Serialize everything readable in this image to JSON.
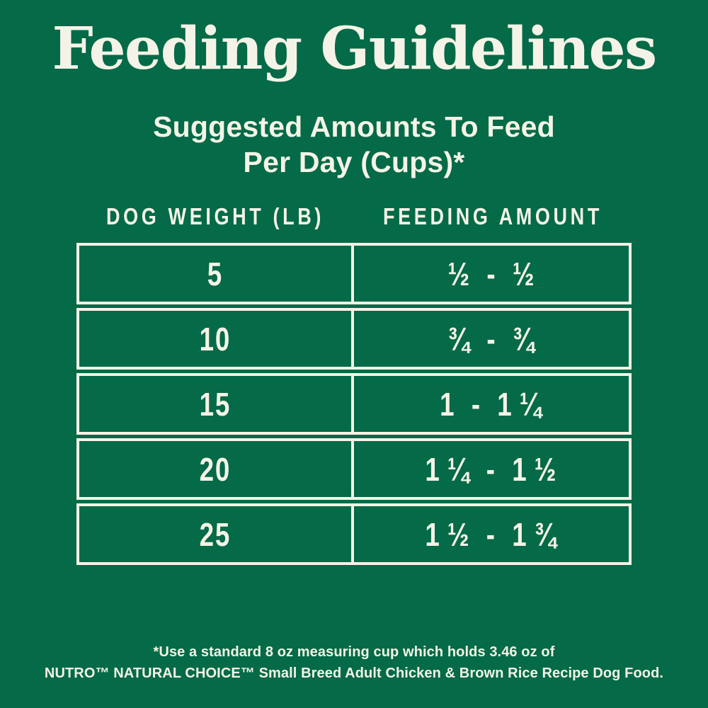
{
  "page": {
    "title": "Feeding Guidelines",
    "subtitle_line1": "Suggested Amounts To Feed",
    "subtitle_line2": "Per Day (Cups)*"
  },
  "table": {
    "columns": [
      {
        "label": "DOG WEIGHT (LB)"
      },
      {
        "label": "FEEDING AMOUNT"
      }
    ],
    "rows": [
      {
        "weight": "5",
        "amount": "½ - ½"
      },
      {
        "weight": "10",
        "amount": "¾ - ¾"
      },
      {
        "weight": "15",
        "amount": "1 - 1 ¼"
      },
      {
        "weight": "20",
        "amount": "1 ¼ - 1 ½"
      },
      {
        "weight": "25",
        "amount": "1 ½ - 1 ¾"
      }
    ]
  },
  "footnote": {
    "line1": "*Use a standard 8 oz measuring cup which holds 3.46 oz of",
    "line2": "NUTRO™ NATURAL CHOICE™ Small Breed Adult Chicken & Brown Rice Recipe Dog Food."
  },
  "colors": {
    "background": "#046a47",
    "text": "#f5f3e7",
    "table_border": "#f5f3e7"
  },
  "chart_data": {
    "type": "table",
    "title": "Feeding Guidelines",
    "subtitle": "Suggested Amounts To Feed Per Day (Cups)*",
    "columns": [
      "DOG WEIGHT (LB)",
      "FEEDING AMOUNT"
    ],
    "rows": [
      [
        "5",
        "½ - ½"
      ],
      [
        "10",
        "¾ - ¾"
      ],
      [
        "15",
        "1 - 1¼"
      ],
      [
        "20",
        "1¼ - 1½"
      ],
      [
        "25",
        "1½ - 1¾"
      ]
    ],
    "footnote": "*Use a standard 8 oz measuring cup which holds 3.46 oz of NUTRO™ NATURAL CHOICE™ Small Breed Adult Chicken & Brown Rice Recipe Dog Food."
  }
}
